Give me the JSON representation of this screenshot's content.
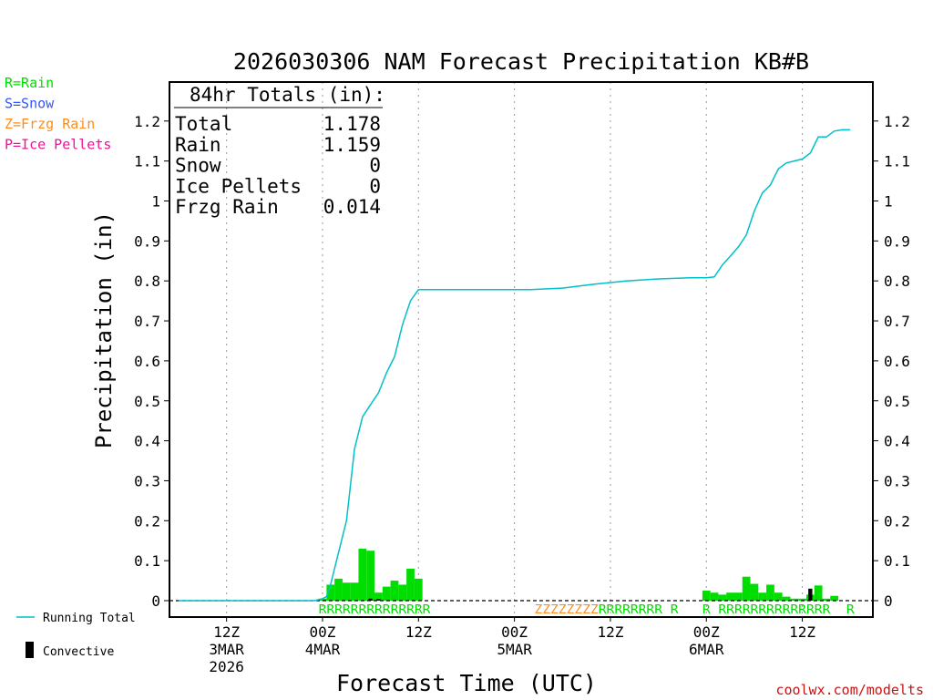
{
  "chart_data": {
    "type": "bar",
    "title": "2026030306 NAM Forecast Precipitation KB#B",
    "xlabel": "Forecast Time (UTC)",
    "ylabel": "Precipitation (in)",
    "ylim": [
      0,
      1.25
    ],
    "y_ticks": [
      "0",
      "0.1",
      "0.2",
      "0.3",
      "0.4",
      "0.5",
      "0.6",
      "0.7",
      "0.8",
      "0.9",
      "1",
      "1.1",
      "1.2"
    ],
    "x_range_hours": [
      0,
      84
    ],
    "x_ticks": [
      {
        "hour": 6,
        "line1": "12Z",
        "line2": "3MAR",
        "line3": "2026"
      },
      {
        "hour": 18,
        "line1": "00Z",
        "line2": "4MAR",
        "line3": ""
      },
      {
        "hour": 30,
        "line1": "12Z",
        "line2": "",
        "line3": ""
      },
      {
        "hour": 42,
        "line1": "00Z",
        "line2": "5MAR",
        "line3": ""
      },
      {
        "hour": 54,
        "line1": "12Z",
        "line2": "",
        "line3": ""
      },
      {
        "hour": 66,
        "line1": "00Z",
        "line2": "6MAR",
        "line3": ""
      },
      {
        "hour": 78,
        "line1": "12Z",
        "line2": "",
        "line3": ""
      }
    ],
    "totals": {
      "header": "84hr Totals (in):",
      "rows": [
        {
          "label": "Total",
          "value": "1.178"
        },
        {
          "label": "Rain",
          "value": "1.159"
        },
        {
          "label": "Snow",
          "value": "0"
        },
        {
          "label": "Ice Pellets",
          "value": "0"
        },
        {
          "label": "Frzg Rain",
          "value": "0.014"
        }
      ]
    },
    "type_legend": [
      {
        "text": "R=Rain",
        "color": "#00dd00"
      },
      {
        "text": "S=Snow",
        "color": "#3355ff"
      },
      {
        "text": "Z=Frzg Rain",
        "color": "#ff8c1a"
      },
      {
        "text": "P=Ice Pellets",
        "color": "#ee1199"
      }
    ],
    "series_legend": [
      {
        "name": "Running Total",
        "color": "#00c0c8"
      },
      {
        "name": "Convective",
        "color": "#000000"
      }
    ],
    "running_total": {
      "hours": [
        0,
        17,
        18,
        18.5,
        19,
        20,
        21,
        22,
        23,
        24,
        25,
        26,
        27,
        28,
        29,
        30,
        31,
        32,
        33,
        36,
        40,
        44,
        48,
        52,
        56,
        60,
        64,
        66,
        67,
        68,
        69,
        70,
        71,
        72,
        73,
        74,
        75,
        76,
        77,
        78,
        79,
        80,
        81,
        82,
        83,
        84
      ],
      "values": [
        0,
        0,
        0.005,
        0.01,
        0.04,
        0.12,
        0.2,
        0.38,
        0.46,
        0.49,
        0.52,
        0.57,
        0.61,
        0.69,
        0.75,
        0.778,
        0.778,
        0.778,
        0.778,
        0.778,
        0.778,
        0.778,
        0.782,
        0.792,
        0.8,
        0.805,
        0.808,
        0.808,
        0.81,
        0.84,
        0.862,
        0.885,
        0.915,
        0.975,
        1.02,
        1.04,
        1.08,
        1.095,
        1.1,
        1.105,
        1.12,
        1.16,
        1.16,
        1.175,
        1.178,
        1.178
      ]
    },
    "bars": {
      "hours": [
        18,
        19,
        20,
        21,
        22,
        23,
        24,
        25,
        26,
        27,
        28,
        29,
        30,
        66,
        67,
        68,
        69,
        70,
        71,
        72,
        73,
        74,
        75,
        76,
        77,
        78,
        79,
        80,
        81,
        82,
        83,
        84
      ],
      "values": [
        0.005,
        0.04,
        0.055,
        0.045,
        0.045,
        0.13,
        0.125,
        0.02,
        0.035,
        0.05,
        0.04,
        0.08,
        0.055,
        0.025,
        0.02,
        0.015,
        0.02,
        0.02,
        0.06,
        0.042,
        0.02,
        0.04,
        0.02,
        0.01,
        0.005,
        0.005,
        0.015,
        0.038,
        0.005,
        0.012,
        0.0,
        0.0
      ],
      "color": "#00dd00"
    },
    "convective": {
      "hours": [
        24,
        25,
        79
      ],
      "values": [
        0.005,
        0.004,
        0.03
      ],
      "color": "#000000"
    },
    "type_strip": [
      {
        "text": "RRRRRRRRRRRRRR",
        "start_hour": 18,
        "color": "#00dd00"
      },
      {
        "text": "ZZZZZZZZ",
        "start_hour": 45,
        "color": "#ff8c1a"
      },
      {
        "text": "RRRRRRRR",
        "start_hour": 53,
        "color": "#00dd00"
      },
      {
        "text": "R",
        "start_hour": 62,
        "color": "#00dd00"
      },
      {
        "text": "R",
        "start_hour": 66,
        "color": "#00dd00"
      },
      {
        "text": "RRRRRRRRRRRRRR",
        "start_hour": 68,
        "color": "#00dd00"
      },
      {
        "text": "R",
        "start_hour": 84,
        "color": "#00dd00"
      }
    ],
    "credit": "coolwx.com/modelts"
  }
}
